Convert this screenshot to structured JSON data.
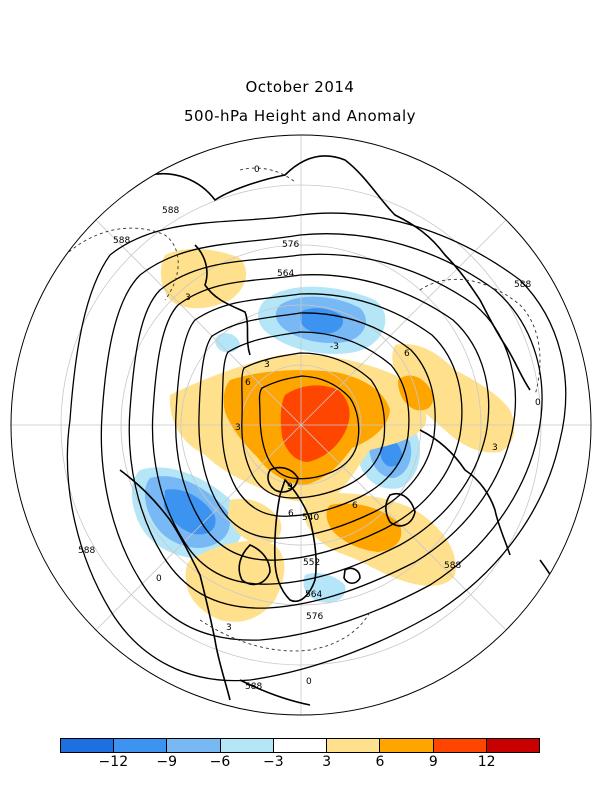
{
  "title": "October 2014",
  "subtitle": "500-hPa Height and Anomaly",
  "legend": {
    "colors": [
      "#1e6fe0",
      "#3c93f0",
      "#78b8f5",
      "#b4e6f8",
      "#ffffff",
      "#ffe08c",
      "#ffa500",
      "#ff4600",
      "#c80000"
    ],
    "tick_labels": [
      "-12",
      "-9",
      "-6",
      "-3",
      "3",
      "6",
      "9",
      "12"
    ]
  },
  "map": {
    "projection": "north polar stereographic",
    "height_contours": [
      "588",
      "576",
      "564",
      "552",
      "540"
    ],
    "anomaly_contours": [
      "0",
      "-3",
      "3",
      "6",
      "9"
    ]
  }
}
